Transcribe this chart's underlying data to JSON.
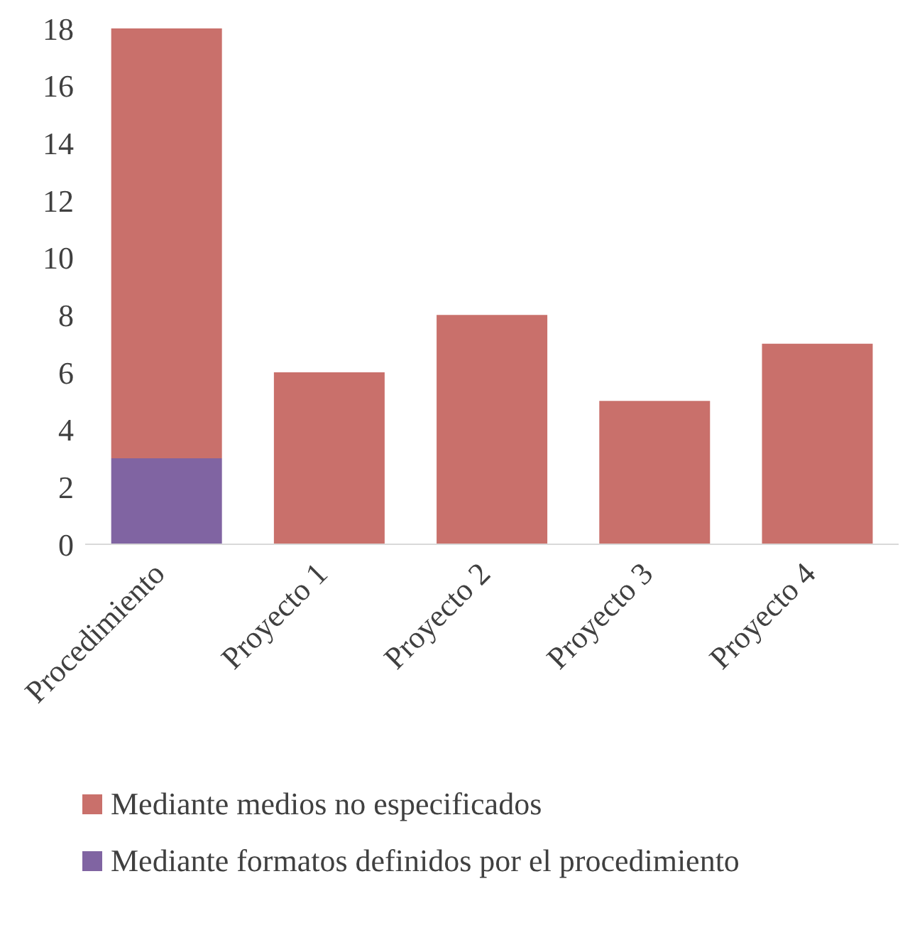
{
  "chart_data": {
    "type": "bar",
    "stacked": true,
    "categories": [
      "Procedimiento",
      "Proyecto 1",
      "Proyecto 2",
      "Proyecto 3",
      "Proyecto 4"
    ],
    "series": [
      {
        "name": "Mediante formatos definidos por el procedimiento",
        "color": "#8064a2",
        "values": [
          3,
          0,
          0,
          0,
          0
        ]
      },
      {
        "name": "Mediante medios no especificados",
        "color": "#c9706b",
        "values": [
          15,
          6,
          8,
          5,
          7
        ]
      }
    ],
    "ylim": [
      0,
      18
    ],
    "yticks": [
      0,
      2,
      4,
      6,
      8,
      10,
      12,
      14,
      16,
      18
    ],
    "grid": false,
    "legend": "bottom"
  }
}
